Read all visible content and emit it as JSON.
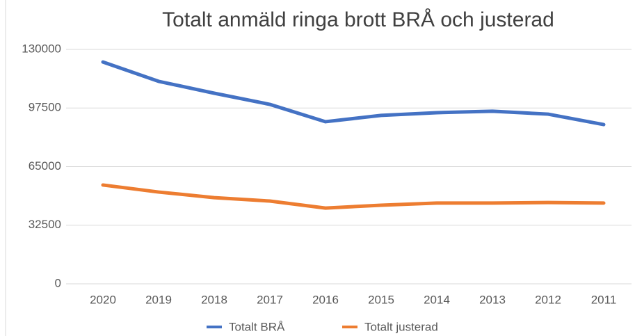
{
  "chart_data": {
    "type": "line",
    "title": "Totalt anmäld ringa brott BRÅ och justerad",
    "categories": [
      "2020",
      "2019",
      "2018",
      "2017",
      "2016",
      "2015",
      "2014",
      "2013",
      "2012",
      "2011"
    ],
    "series": [
      {
        "name": "Totalt BRÅ",
        "color": "#4472c4",
        "values": [
          123000,
          112300,
          105700,
          99500,
          89900,
          93400,
          94900,
          95700,
          94100,
          88300
        ]
      },
      {
        "name": "Totalt justerad",
        "color": "#ed7d31",
        "values": [
          54800,
          50900,
          47800,
          45900,
          42000,
          43600,
          44800,
          44800,
          45100,
          44800
        ]
      }
    ],
    "ylim": [
      0,
      130000
    ],
    "yticks": [
      0,
      32500,
      65000,
      97500,
      130000
    ],
    "grid": true,
    "legend": "bottom"
  }
}
